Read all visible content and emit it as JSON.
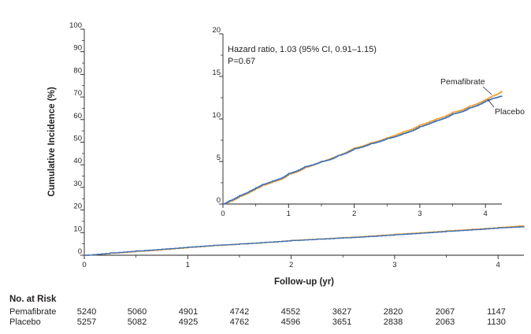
{
  "chart_data": [
    {
      "type": "line",
      "ylabel": "Cumulative Incidence (%)",
      "xlabel": "Follow-up (yr)",
      "xlim": [
        0,
        4.25
      ],
      "ylim": [
        0,
        100
      ],
      "xticks": [
        "0",
        "1",
        "2",
        "3",
        "4"
      ],
      "yticks": [
        "0",
        "10",
        "20",
        "30",
        "40",
        "50",
        "60",
        "70",
        "80",
        "90",
        "100"
      ],
      "grid": false,
      "series": [
        {
          "name": "Pemafibrate",
          "color": "#f0a030",
          "x": [
            0,
            0.25,
            0.5,
            0.75,
            1.0,
            1.25,
            1.5,
            1.75,
            2.0,
            2.25,
            2.5,
            2.75,
            3.0,
            3.25,
            3.5,
            3.75,
            4.0,
            4.25
          ],
          "y": [
            0,
            0.9,
            1.7,
            2.5,
            3.5,
            4.3,
            5.0,
            5.7,
            6.6,
            7.2,
            7.8,
            8.5,
            9.3,
            10.0,
            10.8,
            11.5,
            12.3,
            13.2
          ]
        },
        {
          "name": "Placebo",
          "color": "#3f6fb5",
          "x": [
            0,
            0.25,
            0.5,
            0.75,
            1.0,
            1.25,
            1.5,
            1.75,
            2.0,
            2.25,
            2.5,
            2.75,
            3.0,
            3.25,
            3.5,
            3.75,
            4.0,
            4.25
          ],
          "y": [
            0,
            1.0,
            1.9,
            2.7,
            3.6,
            4.4,
            5.0,
            5.7,
            6.5,
            7.1,
            7.7,
            8.3,
            9.1,
            9.8,
            10.6,
            11.3,
            12.1,
            12.7
          ]
        }
      ]
    },
    {
      "type": "line",
      "xlim": [
        0,
        4.25
      ],
      "ylim": [
        0,
        20
      ],
      "xticks": [
        "0",
        "1",
        "2",
        "3",
        "4"
      ],
      "yticks": [
        "0",
        "5",
        "10",
        "15",
        "20"
      ],
      "annotations": [
        "Hazard ratio, 1.03 (95% CI, 0.91–1.15)",
        "P=0.67"
      ],
      "series": [
        {
          "name": "Pemafibrate",
          "color": "#f0a030",
          "x": [
            0,
            0.1,
            0.25,
            0.4,
            0.5,
            0.6,
            0.75,
            0.9,
            1.0,
            1.15,
            1.25,
            1.4,
            1.5,
            1.65,
            1.75,
            1.9,
            2.0,
            2.15,
            2.25,
            2.4,
            2.5,
            2.65,
            2.75,
            2.9,
            3.0,
            3.15,
            3.25,
            3.4,
            3.5,
            3.65,
            3.75,
            3.9,
            4.0,
            4.1,
            4.2,
            4.25
          ],
          "y": [
            0,
            0.3,
            0.9,
            1.4,
            1.8,
            2.2,
            2.6,
            3.0,
            3.5,
            3.9,
            4.3,
            4.7,
            5.0,
            5.4,
            5.7,
            6.2,
            6.6,
            6.9,
            7.2,
            7.5,
            7.8,
            8.2,
            8.5,
            8.9,
            9.3,
            9.7,
            10.0,
            10.4,
            10.8,
            11.1,
            11.5,
            11.9,
            12.3,
            12.7,
            13.0,
            13.3
          ]
        },
        {
          "name": "Placebo",
          "color": "#3f6fb5",
          "x": [
            0,
            0.1,
            0.25,
            0.4,
            0.5,
            0.6,
            0.75,
            0.9,
            1.0,
            1.15,
            1.25,
            1.4,
            1.5,
            1.65,
            1.75,
            1.9,
            2.0,
            2.15,
            2.25,
            2.4,
            2.5,
            2.65,
            2.75,
            2.9,
            3.0,
            3.15,
            3.25,
            3.4,
            3.5,
            3.65,
            3.75,
            3.9,
            4.0,
            4.1,
            4.2,
            4.25
          ],
          "y": [
            0,
            0.4,
            1.0,
            1.5,
            1.9,
            2.3,
            2.7,
            3.1,
            3.6,
            4.0,
            4.4,
            4.7,
            5.0,
            5.3,
            5.7,
            6.1,
            6.5,
            6.8,
            7.1,
            7.4,
            7.7,
            8.0,
            8.3,
            8.7,
            9.1,
            9.5,
            9.8,
            10.2,
            10.6,
            10.9,
            11.3,
            11.7,
            12.1,
            12.4,
            12.6,
            12.7
          ]
        }
      ]
    }
  ],
  "risk_table": {
    "title": "No. at Risk",
    "rows": [
      {
        "label": "Pemafibrate",
        "values": [
          "5240",
          "5060",
          "4901",
          "4742",
          "4552",
          "3627",
          "2820",
          "2067",
          "1147"
        ]
      },
      {
        "label": "Placebo",
        "values": [
          "5257",
          "5082",
          "4925",
          "4762",
          "4596",
          "3651",
          "2838",
          "2063",
          "1130"
        ]
      }
    ]
  }
}
